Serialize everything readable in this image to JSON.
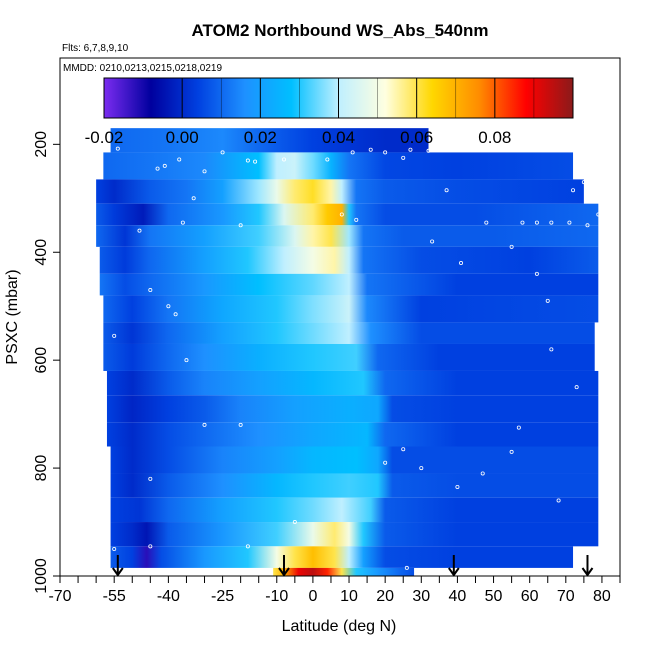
{
  "chart_data": {
    "type": "heatmap",
    "title": "ATOM2 Northbound WS_Abs_540nm",
    "flights_note": "Flts: 6,7,8,9,10",
    "dates_note": "MMDD: 0210,0213,0215,0218,0219",
    "xlabel": "Latitude (deg N)",
    "ylabel": "PSXC (mbar)",
    "xlim": [
      -70,
      85
    ],
    "ylim": [
      1000,
      40
    ],
    "x_ticks": [
      -70,
      -55,
      -40,
      -25,
      -10,
      0,
      10,
      20,
      30,
      40,
      50,
      60,
      70,
      80
    ],
    "x_tick_labels": [
      "-70",
      "-55",
      "-40",
      "-25",
      "-10",
      "0",
      "10",
      "20",
      "30",
      "40",
      "50",
      "60",
      "70",
      "80"
    ],
    "x_minor_ticks": [
      -65,
      -60,
      -50,
      -45,
      -35,
      -30,
      -20,
      -15,
      -5,
      5,
      15,
      25,
      35,
      45,
      55,
      65,
      75,
      85
    ],
    "y_ticks": [
      200,
      400,
      600,
      800,
      1000
    ],
    "y_tick_labels": [
      "200",
      "400",
      "600",
      "800",
      "1000"
    ],
    "colorbar": {
      "min": -0.02,
      "max": 0.1,
      "ticks": [
        -0.02,
        0.0,
        0.02,
        0.04,
        0.06,
        0.08
      ],
      "tick_labels": [
        "-0.02",
        "0.00",
        "0.02",
        "0.04",
        "0.06",
        "0.08"
      ],
      "colors": [
        "#7b2cf0",
        "#00009e",
        "#0040e0",
        "#1e90ff",
        "#00bfff",
        "#bfefff",
        "#ffffe0",
        "#ffd700",
        "#ff8c00",
        "#ff0000",
        "#8b1a1a"
      ]
    },
    "profile_markers_lat": [
      -54,
      -8,
      39,
      76
    ],
    "layers": [
      {
        "p_top": 170,
        "p_bot": 215,
        "lat_min": -56,
        "lat_max": 32,
        "values": [
          [
            -56,
            0.01
          ],
          [
            -40,
            0.012
          ],
          [
            -25,
            0.015
          ],
          [
            -15,
            0.01
          ],
          [
            0,
            0.004
          ],
          [
            20,
            0.0
          ],
          [
            32,
            0.0
          ]
        ]
      },
      {
        "p_top": 215,
        "p_bot": 265,
        "lat_min": -58,
        "lat_max": 72,
        "values": [
          [
            -58,
            0.01
          ],
          [
            -45,
            0.012
          ],
          [
            -30,
            0.015
          ],
          [
            -15,
            0.028
          ],
          [
            -10,
            0.04
          ],
          [
            -5,
            0.042
          ],
          [
            0,
            0.035
          ],
          [
            5,
            0.025
          ],
          [
            10,
            0.012
          ],
          [
            20,
            0.005
          ],
          [
            40,
            0.004
          ],
          [
            72,
            0.006
          ]
        ]
      },
      {
        "p_top": 265,
        "p_bot": 310,
        "lat_min": -60,
        "lat_max": 75,
        "values": [
          [
            -60,
            0.004
          ],
          [
            -55,
            0.0
          ],
          [
            -45,
            0.008
          ],
          [
            -35,
            0.012
          ],
          [
            -25,
            0.02
          ],
          [
            -15,
            0.038
          ],
          [
            -10,
            0.048
          ],
          [
            -5,
            0.058
          ],
          [
            0,
            0.062
          ],
          [
            5,
            0.055
          ],
          [
            8,
            0.04
          ],
          [
            12,
            0.012
          ],
          [
            20,
            0.008
          ],
          [
            40,
            0.006
          ],
          [
            75,
            0.004
          ]
        ]
      },
      {
        "p_top": 310,
        "p_bot": 350,
        "lat_min": -60,
        "lat_max": 79,
        "values": [
          [
            -60,
            0.008
          ],
          [
            -55,
            0.003
          ],
          [
            -47,
            -0.003
          ],
          [
            -40,
            0.01
          ],
          [
            -25,
            0.018
          ],
          [
            -15,
            0.03
          ],
          [
            -8,
            0.045
          ],
          [
            0,
            0.058
          ],
          [
            4,
            0.066
          ],
          [
            8,
            0.07
          ],
          [
            10,
            0.03
          ],
          [
            12,
            0.012
          ],
          [
            20,
            0.006
          ],
          [
            45,
            0.006
          ],
          [
            79,
            0.01
          ]
        ]
      },
      {
        "p_top": 350,
        "p_bot": 390,
        "lat_min": -60,
        "lat_max": 79,
        "values": [
          [
            -60,
            0.01
          ],
          [
            -52,
            0.002
          ],
          [
            -45,
            0.012
          ],
          [
            -30,
            0.02
          ],
          [
            -15,
            0.032
          ],
          [
            -5,
            0.045
          ],
          [
            0,
            0.055
          ],
          [
            5,
            0.06
          ],
          [
            10,
            0.038
          ],
          [
            14,
            0.012
          ],
          [
            25,
            0.008
          ],
          [
            50,
            0.008
          ],
          [
            79,
            0.01
          ]
        ]
      },
      {
        "p_top": 390,
        "p_bot": 440,
        "lat_min": -59,
        "lat_max": 79,
        "values": [
          [
            -59,
            0.008
          ],
          [
            -52,
            0.003
          ],
          [
            -45,
            0.01
          ],
          [
            -30,
            0.02
          ],
          [
            -18,
            0.03
          ],
          [
            -8,
            0.04
          ],
          [
            0,
            0.05
          ],
          [
            6,
            0.055
          ],
          [
            10,
            0.04
          ],
          [
            14,
            0.012
          ],
          [
            30,
            0.006
          ],
          [
            60,
            0.004
          ],
          [
            79,
            0.008
          ]
        ]
      },
      {
        "p_top": 440,
        "p_bot": 480,
        "lat_min": -59,
        "lat_max": 79,
        "values": [
          [
            -59,
            0.012
          ],
          [
            -52,
            0.006
          ],
          [
            -45,
            0.01
          ],
          [
            -30,
            0.018
          ],
          [
            -15,
            0.028
          ],
          [
            0,
            0.034
          ],
          [
            10,
            0.04
          ],
          [
            15,
            0.012
          ],
          [
            40,
            0.004
          ],
          [
            79,
            0.004
          ]
        ]
      },
      {
        "p_top": 480,
        "p_bot": 530,
        "lat_min": -58,
        "lat_max": 79,
        "values": [
          [
            -58,
            0.01
          ],
          [
            -50,
            0.004
          ],
          [
            -40,
            0.012
          ],
          [
            -25,
            0.022
          ],
          [
            -10,
            0.03
          ],
          [
            0,
            0.036
          ],
          [
            10,
            0.042
          ],
          [
            15,
            0.015
          ],
          [
            30,
            0.004
          ],
          [
            79,
            0.006
          ]
        ]
      },
      {
        "p_top": 530,
        "p_bot": 570,
        "lat_min": -58,
        "lat_max": 78,
        "values": [
          [
            -58,
            0.008
          ],
          [
            -50,
            0.002
          ],
          [
            -40,
            0.01
          ],
          [
            -25,
            0.02
          ],
          [
            -10,
            0.03
          ],
          [
            0,
            0.035
          ],
          [
            10,
            0.04
          ],
          [
            16,
            0.016
          ],
          [
            30,
            0.006
          ],
          [
            78,
            0.006
          ]
        ]
      },
      {
        "p_top": 570,
        "p_bot": 620,
        "lat_min": -58,
        "lat_max": 78,
        "values": [
          [
            -58,
            0.008
          ],
          [
            -50,
            0.003
          ],
          [
            -40,
            0.01
          ],
          [
            -30,
            0.016
          ],
          [
            -15,
            0.024
          ],
          [
            0,
            0.03
          ],
          [
            12,
            0.032
          ],
          [
            18,
            0.01
          ],
          [
            35,
            0.004
          ],
          [
            78,
            0.004
          ]
        ]
      },
      {
        "p_top": 620,
        "p_bot": 665,
        "lat_min": -57,
        "lat_max": 79,
        "values": [
          [
            -57,
            0.004
          ],
          [
            -50,
            0.0
          ],
          [
            -40,
            0.008
          ],
          [
            -30,
            0.014
          ],
          [
            -15,
            0.02
          ],
          [
            0,
            0.026
          ],
          [
            14,
            0.03
          ],
          [
            20,
            0.01
          ],
          [
            40,
            0.004
          ],
          [
            79,
            0.004
          ]
        ]
      },
      {
        "p_top": 665,
        "p_bot": 715,
        "lat_min": -57,
        "lat_max": 79,
        "values": [
          [
            -57,
            0.004
          ],
          [
            -50,
            -0.001
          ],
          [
            -40,
            0.004
          ],
          [
            -30,
            0.008
          ],
          [
            -20,
            0.014
          ],
          [
            -5,
            0.02
          ],
          [
            10,
            0.024
          ],
          [
            18,
            0.022
          ],
          [
            22,
            0.006
          ],
          [
            40,
            0.004
          ],
          [
            79,
            0.004
          ]
        ]
      },
      {
        "p_top": 715,
        "p_bot": 760,
        "lat_min": -57,
        "lat_max": 79,
        "values": [
          [
            -57,
            0.004
          ],
          [
            -50,
            0.0
          ],
          [
            -40,
            0.006
          ],
          [
            -30,
            0.01
          ],
          [
            -15,
            0.016
          ],
          [
            0,
            0.022
          ],
          [
            15,
            0.026
          ],
          [
            20,
            0.01
          ],
          [
            40,
            0.004
          ],
          [
            79,
            0.004
          ]
        ]
      },
      {
        "p_top": 760,
        "p_bot": 810,
        "lat_min": -56,
        "lat_max": 79,
        "values": [
          [
            -56,
            0.004
          ],
          [
            -50,
            0.0
          ],
          [
            -40,
            0.006
          ],
          [
            -25,
            0.014
          ],
          [
            -10,
            0.02
          ],
          [
            0,
            0.026
          ],
          [
            12,
            0.028
          ],
          [
            18,
            0.022
          ],
          [
            22,
            0.006
          ],
          [
            40,
            0.006
          ],
          [
            79,
            0.006
          ]
        ]
      },
      {
        "p_top": 810,
        "p_bot": 855,
        "lat_min": -56,
        "lat_max": 79,
        "values": [
          [
            -56,
            0.004
          ],
          [
            -50,
            0.0
          ],
          [
            -40,
            0.008
          ],
          [
            -25,
            0.016
          ],
          [
            -10,
            0.026
          ],
          [
            0,
            0.03
          ],
          [
            10,
            0.032
          ],
          [
            18,
            0.03
          ],
          [
            22,
            0.008
          ],
          [
            40,
            0.006
          ],
          [
            79,
            0.006
          ]
        ]
      },
      {
        "p_top": 855,
        "p_bot": 900,
        "lat_min": -56,
        "lat_max": 79,
        "values": [
          [
            -56,
            0.004
          ],
          [
            -48,
            0.002
          ],
          [
            -40,
            0.01
          ],
          [
            -25,
            0.02
          ],
          [
            -10,
            0.03
          ],
          [
            0,
            0.035
          ],
          [
            8,
            0.04
          ],
          [
            16,
            0.032
          ],
          [
            20,
            0.008
          ],
          [
            40,
            0.004
          ],
          [
            79,
            0.004
          ]
        ]
      },
      {
        "p_top": 900,
        "p_bot": 945,
        "lat_min": -56,
        "lat_max": 79,
        "values": [
          [
            -56,
            0.004
          ],
          [
            -50,
            0.0
          ],
          [
            -46,
            -0.004
          ],
          [
            -40,
            0.008
          ],
          [
            -25,
            0.018
          ],
          [
            -10,
            0.032
          ],
          [
            0,
            0.048
          ],
          [
            6,
            0.058
          ],
          [
            10,
            0.05
          ],
          [
            14,
            0.03
          ],
          [
            20,
            0.008
          ],
          [
            40,
            0.004
          ],
          [
            79,
            0.004
          ]
        ]
      },
      {
        "p_top": 945,
        "p_bot": 985,
        "lat_min": -56,
        "lat_max": 72,
        "values": [
          [
            -56,
            0.008
          ],
          [
            -50,
            0.004
          ],
          [
            -46,
            -0.012
          ],
          [
            -42,
            0.006
          ],
          [
            -30,
            0.018
          ],
          [
            -18,
            0.03
          ],
          [
            -10,
            0.05
          ],
          [
            -5,
            0.06
          ],
          [
            0,
            0.068
          ],
          [
            6,
            0.06
          ],
          [
            10,
            0.04
          ],
          [
            14,
            0.02
          ],
          [
            20,
            0.006
          ],
          [
            40,
            0.004
          ],
          [
            72,
            0.004
          ]
        ]
      },
      {
        "p_top": 985,
        "p_bot": 1020,
        "lat_min": -11,
        "lat_max": 28,
        "values": [
          [
            -11,
            0.06
          ],
          [
            -8,
            0.07
          ],
          [
            -4,
            0.09
          ],
          [
            0,
            0.095
          ],
          [
            4,
            0.085
          ],
          [
            8,
            0.06
          ],
          [
            12,
            0.03
          ],
          [
            18,
            0.018
          ],
          [
            24,
            0.01
          ],
          [
            28,
            0.006
          ]
        ]
      }
    ],
    "sample_points": [
      [
        -54,
        208
      ],
      [
        -43,
        245
      ],
      [
        -41,
        240
      ],
      [
        -37,
        228
      ],
      [
        -33,
        300
      ],
      [
        -30,
        250
      ],
      [
        -25,
        215
      ],
      [
        -18,
        230
      ],
      [
        -16,
        232
      ],
      [
        -8,
        228
      ],
      [
        4,
        228
      ],
      [
        11,
        215
      ],
      [
        16,
        210
      ],
      [
        20,
        215
      ],
      [
        25,
        225
      ],
      [
        27,
        210
      ],
      [
        32,
        212
      ],
      [
        -48,
        360
      ],
      [
        -36,
        345
      ],
      [
        -20,
        350
      ],
      [
        12,
        340
      ],
      [
        8,
        330
      ],
      [
        37,
        285
      ],
      [
        48,
        345
      ],
      [
        55,
        390
      ],
      [
        58,
        345
      ],
      [
        62,
        345
      ],
      [
        66,
        345
      ],
      [
        71,
        345
      ],
      [
        76,
        350
      ],
      [
        79,
        330
      ],
      [
        72,
        285
      ],
      [
        75,
        270
      ],
      [
        33,
        380
      ],
      [
        41,
        420
      ],
      [
        62,
        440
      ],
      [
        65,
        490
      ],
      [
        66,
        580
      ],
      [
        73,
        650
      ],
      [
        -55,
        555
      ],
      [
        -45,
        470
      ],
      [
        -40,
        500
      ],
      [
        -38,
        515
      ],
      [
        -35,
        600
      ],
      [
        -20,
        720
      ],
      [
        -30,
        720
      ],
      [
        -45,
        820
      ],
      [
        20,
        790
      ],
      [
        25,
        765
      ],
      [
        30,
        800
      ],
      [
        40,
        835
      ],
      [
        47,
        810
      ],
      [
        55,
        770
      ],
      [
        57,
        725
      ],
      [
        68,
        860
      ],
      [
        -55,
        950
      ],
      [
        -45,
        945
      ],
      [
        -18,
        945
      ],
      [
        -5,
        900
      ],
      [
        26,
        985
      ],
      [
        31,
        1000
      ]
    ]
  }
}
